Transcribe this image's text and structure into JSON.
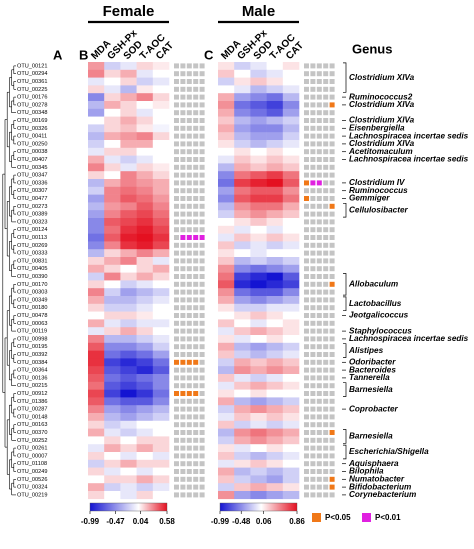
{
  "panel_letters": [
    "A",
    "B",
    "C"
  ],
  "genus_title": "Genus",
  "rows": [
    "OTU_00121",
    "OTU_00294",
    "OTU_00361",
    "OTU_00225",
    "OTU_00176",
    "OTU_00278",
    "OTU_00348",
    "OTU_00169",
    "OTU_00326",
    "OTU_00411",
    "OTU_00250",
    "OTU_00038",
    "OTU_00407",
    "OTU_00345",
    "OTU_00347",
    "OTU_00336",
    "OTU_00307",
    "OTU_00477",
    "OTU_00273",
    "OTU_00389",
    "OTU_00323",
    "OTU_00124",
    "OTU_00113",
    "OTU_00269",
    "OTU_00333",
    "OTU_00831",
    "OTU_00405",
    "OTU_00390",
    "OTU_00170",
    "OTU_00303",
    "OTU_00349",
    "OTU_00180",
    "OTU_00478",
    "OTU_00063",
    "OTU_00119",
    "OTU_00998",
    "OTU_00195",
    "OTU_00392",
    "OTU_00384",
    "OTU_00364",
    "OTU_00136",
    "OTU_00215",
    "OTU_00912",
    "OTU_01386",
    "OTU_00287",
    "OTU_00148",
    "OTU_00163",
    "OTU_00370",
    "OTU_00252",
    "OTU_00261",
    "OTU_00007",
    "OTU_01108",
    "OTU_00249",
    "OTU_00526",
    "OTU_00324",
    "OTU_00219"
  ],
  "row_colors": [
    "#d01010",
    "#d01010",
    "#1020c0",
    "#1020c0",
    "#d01010",
    "#1020c0",
    "#1020c0",
    "#1020c0",
    "#d01010",
    "#d01010",
    "#1020c0",
    "#1020c0",
    "#30a030",
    "#d01010",
    "#1020c0",
    "#1020c0",
    "#1020c0",
    "#1020c0",
    "#d01010",
    "#1020c0",
    "#1020c0",
    "#d01010",
    "#d01010",
    "#1020c0",
    "#1020c0",
    "#d01010",
    "#d01010",
    "#1020c0",
    "#1020c0",
    "#d01010",
    "#1020c0",
    "#1020c0",
    "#1020c0",
    "#1020c0",
    "#1020c0",
    "#d01010",
    "#1020c0",
    "#d01010",
    "#1020c0",
    "#1020c0",
    "#1020c0",
    "#d01010",
    "#d01010",
    "#30a030",
    "#d01010",
    "#d01010",
    "#d01010",
    "#d01010",
    "#d01010",
    "#1020c0",
    "#1020c0",
    "#1020c0",
    "#1020c0",
    "#d01010",
    "#d01010",
    "#1020c0"
  ],
  "genus_labels": [
    {
      "text": "Clostridium XIVa",
      "rows": [
        0,
        3
      ]
    },
    {
      "text": "Ruminococcus2",
      "rows": [
        4,
        4
      ]
    },
    {
      "text": "Clostridium XIVa",
      "rows": [
        5,
        5
      ]
    },
    {
      "text": "Clostridium XIVa",
      "rows": [
        7,
        7
      ]
    },
    {
      "text": "Eisenbergiella",
      "rows": [
        8,
        8
      ]
    },
    {
      "text": "Lachnospiracea incertae sedis",
      "rows": [
        9,
        9
      ]
    },
    {
      "text": "Clostridium XIVa",
      "rows": [
        10,
        10
      ]
    },
    {
      "text": "Acetitomaculum",
      "rows": [
        11,
        11
      ]
    },
    {
      "text": "Lachnospiracea incertae sedis",
      "rows": [
        12,
        12
      ]
    },
    {
      "text": "Clostridium IV",
      "rows": [
        15,
        15
      ]
    },
    {
      "text": "Ruminococcus",
      "rows": [
        16,
        16
      ]
    },
    {
      "text": "Gemmiger",
      "rows": [
        17,
        17
      ]
    },
    {
      "text": "Cellulosibacter",
      "rows": [
        18,
        19
      ]
    },
    {
      "text": "Allobaculum",
      "rows": [
        27,
        29
      ]
    },
    {
      "text": "Lactobacillus",
      "rows": [
        30,
        31
      ]
    },
    {
      "text": "Jeotgalicoccus",
      "rows": [
        32,
        32
      ]
    },
    {
      "text": "Staphylococcus",
      "rows": [
        34,
        34
      ]
    },
    {
      "text": "Lachnospiracea incertae sedis",
      "rows": [
        35,
        35
      ]
    },
    {
      "text": "Alistipes",
      "rows": [
        36,
        37
      ]
    },
    {
      "text": "Odoribacter",
      "rows": [
        38,
        38
      ]
    },
    {
      "text": "Bacteroides",
      "rows": [
        39,
        39
      ]
    },
    {
      "text": "Tannerella",
      "rows": [
        40,
        40
      ]
    },
    {
      "text": "Barnesiella",
      "rows": [
        41,
        42
      ]
    },
    {
      "text": "Coprobacter",
      "rows": [
        44,
        44
      ]
    },
    {
      "text": "Barnesiella",
      "rows": [
        47,
        48
      ]
    },
    {
      "text": "Escherichia/Shigella",
      "rows": [
        49,
        50
      ]
    },
    {
      "text": "Aquisphaera",
      "rows": [
        51,
        51
      ]
    },
    {
      "text": "Bilophila",
      "rows": [
        52,
        52
      ]
    },
    {
      "text": "Numatobacter",
      "rows": [
        53,
        53
      ]
    },
    {
      "text": "Bifidobacterium",
      "rows": [
        54,
        54
      ]
    },
    {
      "text": "Corynebacterium",
      "rows": [
        55,
        55
      ]
    }
  ],
  "legend": [
    {
      "label": "P<0.05",
      "color": "#f07818"
    },
    {
      "label": "P<0.01",
      "color": "#e020e0"
    }
  ],
  "chart_data": [
    {
      "type": "heatmap",
      "title": "Female",
      "columns": [
        "MDA",
        "GSH-Px",
        "SOD",
        "T-AOC",
        "CAT"
      ],
      "colors": [
        "#1414d2",
        "#ffffff",
        "#e41020"
      ],
      "clim": [
        -0.99,
        0.58
      ],
      "cticks": [
        -0.99,
        -0.47,
        0.04,
        0.58
      ],
      "values": [
        [
          0.25,
          -0.2,
          -0.1,
          0.1,
          0.05
        ],
        [
          0.3,
          0.1,
          0.2,
          -0.1,
          0.0
        ],
        [
          -0.1,
          0.0,
          0.1,
          -0.2,
          -0.1
        ],
        [
          0.1,
          -0.1,
          -0.3,
          0.05,
          0.0
        ],
        [
          -0.5,
          0.1,
          0.2,
          0.3,
          0.1
        ],
        [
          -0.3,
          0.2,
          0.1,
          0.0,
          0.05
        ],
        [
          -0.4,
          0.0,
          0.1,
          -0.1,
          0.0
        ],
        [
          0.0,
          0.1,
          0.2,
          0.1,
          0.0
        ],
        [
          -0.2,
          0.1,
          0.15,
          0.05,
          -0.05
        ],
        [
          -0.3,
          0.2,
          0.25,
          0.3,
          0.1
        ],
        [
          -0.2,
          0.0,
          0.2,
          0.2,
          0.0
        ],
        [
          -0.1,
          0.1,
          0.1,
          0.0,
          0.0
        ],
        [
          0.2,
          -0.1,
          -0.2,
          -0.1,
          0.0
        ],
        [
          0.3,
          0.1,
          -0.1,
          0.1,
          0.05
        ],
        [
          0.1,
          0.0,
          0.3,
          0.2,
          0.1
        ],
        [
          -0.3,
          0.2,
          0.3,
          0.25,
          0.2
        ],
        [
          -0.2,
          0.3,
          0.35,
          0.3,
          0.2
        ],
        [
          -0.4,
          0.3,
          0.4,
          0.35,
          0.25
        ],
        [
          -0.3,
          0.25,
          0.3,
          0.4,
          0.3
        ],
        [
          -0.4,
          0.3,
          0.4,
          0.45,
          0.35
        ],
        [
          -0.5,
          0.4,
          0.45,
          0.5,
          0.4
        ],
        [
          -0.5,
          0.35,
          0.5,
          0.55,
          0.45
        ],
        [
          -0.6,
          0.4,
          0.55,
          0.58,
          0.5
        ],
        [
          -0.5,
          0.3,
          0.5,
          0.55,
          0.45
        ],
        [
          -0.3,
          0.1,
          0.2,
          0.3,
          0.2
        ],
        [
          0.1,
          0.2,
          0.3,
          0.1,
          -0.1
        ],
        [
          0.2,
          0.1,
          0.0,
          0.1,
          0.2
        ],
        [
          -0.2,
          0.3,
          0.1,
          0.2,
          0.1
        ],
        [
          0.1,
          0.0,
          -0.2,
          -0.1,
          0.0
        ],
        [
          0.3,
          -0.2,
          -0.4,
          -0.3,
          -0.2
        ],
        [
          0.2,
          -0.3,
          -0.3,
          -0.2,
          -0.1
        ],
        [
          0.1,
          -0.2,
          -0.2,
          -0.1,
          0.0
        ],
        [
          0.0,
          0.1,
          0.1,
          0.05,
          0.0
        ],
        [
          0.2,
          -0.1,
          -0.2,
          -0.1,
          -0.1
        ],
        [
          -0.1,
          0.1,
          0.2,
          0.1,
          0.0
        ],
        [
          0.3,
          -0.3,
          -0.3,
          -0.2,
          -0.1
        ],
        [
          0.4,
          -0.5,
          -0.5,
          -0.4,
          -0.2
        ],
        [
          0.5,
          -0.6,
          -0.7,
          -0.6,
          -0.4
        ],
        [
          0.5,
          -0.8,
          -0.9,
          -0.8,
          -0.6
        ],
        [
          0.45,
          -0.7,
          -0.8,
          -0.9,
          -0.7
        ],
        [
          0.4,
          -0.6,
          -0.7,
          -0.6,
          -0.5
        ],
        [
          0.35,
          -0.7,
          -0.8,
          -0.7,
          -0.5
        ],
        [
          0.45,
          -0.8,
          -0.99,
          -0.85,
          -0.6
        ],
        [
          0.4,
          -0.6,
          -0.7,
          -0.7,
          -0.5
        ],
        [
          0.3,
          -0.4,
          -0.5,
          -0.4,
          -0.3
        ],
        [
          0.2,
          -0.3,
          -0.4,
          -0.3,
          -0.2
        ],
        [
          0.1,
          -0.2,
          -0.1,
          0.0,
          0.0
        ],
        [
          0.2,
          -0.1,
          -0.2,
          -0.1,
          0.0
        ],
        [
          0.0,
          0.1,
          0.0,
          0.1,
          0.1
        ],
        [
          -0.1,
          0.2,
          0.1,
          0.2,
          0.1
        ],
        [
          0.1,
          0.0,
          -0.1,
          0.0,
          -0.1
        ],
        [
          -0.2,
          0.1,
          0.2,
          0.1,
          0.1
        ],
        [
          0.1,
          -0.1,
          0.0,
          -0.1,
          0.0
        ],
        [
          0.0,
          0.1,
          0.1,
          0.2,
          0.1
        ],
        [
          0.2,
          -0.2,
          -0.1,
          -0.2,
          -0.1
        ],
        [
          0.1,
          0.0,
          -0.1,
          0.1,
          0.0
        ]
      ],
      "significant": [
        {
          "row": 22,
          "col": 1,
          "level": 1
        },
        {
          "row": 22,
          "col": 2,
          "level": 1
        },
        {
          "row": 22,
          "col": 3,
          "level": 1
        },
        {
          "row": 22,
          "col": 4,
          "level": 1
        },
        {
          "row": 38,
          "col": 0,
          "level": 0
        },
        {
          "row": 38,
          "col": 1,
          "level": 0
        },
        {
          "row": 38,
          "col": 2,
          "level": 0
        },
        {
          "row": 38,
          "col": 3,
          "level": 0
        },
        {
          "row": 42,
          "col": 0,
          "level": 0
        },
        {
          "row": 42,
          "col": 1,
          "level": 0
        },
        {
          "row": 42,
          "col": 2,
          "level": 0
        },
        {
          "row": 42,
          "col": 3,
          "level": 0
        }
      ]
    },
    {
      "type": "heatmap",
      "title": "Male",
      "columns": [
        "MDA",
        "GSH-Px",
        "SOD",
        "T-AOC",
        "CAT"
      ],
      "colors": [
        "#1414d2",
        "#ffffff",
        "#e41020"
      ],
      "clim": [
        -0.99,
        0.86
      ],
      "cticks": [
        -0.99,
        -0.48,
        0.06,
        0.86
      ],
      "values": [
        [
          0.1,
          -0.2,
          -0.1,
          0.0,
          0.1
        ],
        [
          0.2,
          0.0,
          -0.2,
          -0.1,
          0.0
        ],
        [
          -0.2,
          0.1,
          0.2,
          0.1,
          0.0
        ],
        [
          0.0,
          -0.1,
          -0.3,
          -0.2,
          -0.1
        ],
        [
          0.3,
          -0.4,
          -0.5,
          -0.6,
          -0.3
        ],
        [
          0.4,
          -0.6,
          -0.7,
          -0.8,
          -0.5
        ],
        [
          0.3,
          -0.5,
          -0.6,
          -0.7,
          -0.4
        ],
        [
          0.2,
          -0.3,
          -0.4,
          -0.3,
          -0.2
        ],
        [
          0.3,
          -0.4,
          -0.5,
          -0.5,
          -0.3
        ],
        [
          0.2,
          -0.3,
          -0.4,
          -0.4,
          -0.2
        ],
        [
          0.1,
          -0.2,
          -0.3,
          -0.2,
          -0.1
        ],
        [
          0.0,
          0.1,
          0.0,
          0.1,
          0.0
        ],
        [
          -0.1,
          0.2,
          0.1,
          0.2,
          0.1
        ],
        [
          -0.3,
          0.3,
          0.2,
          0.3,
          0.2
        ],
        [
          -0.5,
          0.5,
          0.6,
          0.7,
          0.5
        ],
        [
          -0.6,
          0.7,
          0.8,
          0.86,
          0.6
        ],
        [
          -0.4,
          0.5,
          0.6,
          0.6,
          0.4
        ],
        [
          -0.5,
          0.6,
          0.7,
          0.7,
          0.5
        ],
        [
          -0.3,
          0.4,
          0.5,
          0.5,
          0.3
        ],
        [
          -0.2,
          0.3,
          0.4,
          0.3,
          0.2
        ],
        [
          0.0,
          0.1,
          0.2,
          0.1,
          0.0
        ],
        [
          0.1,
          -0.1,
          0.0,
          -0.1,
          0.0
        ],
        [
          -0.1,
          0.2,
          0.1,
          0.2,
          0.1
        ],
        [
          0.2,
          -0.2,
          -0.1,
          -0.2,
          -0.1
        ],
        [
          0.1,
          0.0,
          -0.1,
          0.0,
          0.0
        ],
        [
          0.2,
          -0.3,
          -0.2,
          -0.3,
          -0.2
        ],
        [
          0.4,
          -0.5,
          -0.6,
          -0.5,
          -0.4
        ],
        [
          0.5,
          -0.8,
          -0.9,
          -0.99,
          -0.7
        ],
        [
          0.6,
          -0.9,
          -0.99,
          -0.9,
          -0.8
        ],
        [
          0.4,
          -0.6,
          -0.7,
          -0.7,
          -0.5
        ],
        [
          0.3,
          -0.4,
          -0.5,
          -0.4,
          -0.3
        ],
        [
          0.1,
          -0.2,
          -0.2,
          -0.1,
          -0.1
        ],
        [
          0.0,
          0.1,
          0.2,
          0.1,
          0.0
        ],
        [
          0.2,
          0.0,
          -0.1,
          0.0,
          0.1
        ],
        [
          -0.1,
          0.2,
          0.3,
          0.2,
          0.1
        ],
        [
          0.1,
          -0.1,
          0.0,
          0.1,
          0.0
        ],
        [
          0.3,
          -0.3,
          -0.4,
          -0.3,
          -0.2
        ],
        [
          0.2,
          -0.2,
          -0.3,
          -0.2,
          -0.1
        ],
        [
          -0.2,
          0.3,
          0.2,
          0.3,
          0.2
        ],
        [
          -0.3,
          0.4,
          0.3,
          0.4,
          0.3
        ],
        [
          0.2,
          -0.1,
          -0.2,
          -0.1,
          0.0
        ],
        [
          -0.1,
          0.2,
          0.3,
          0.2,
          0.1
        ],
        [
          0.1,
          0.0,
          0.1,
          0.0,
          0.0
        ],
        [
          0.3,
          -0.3,
          -0.4,
          -0.3,
          -0.2
        ],
        [
          -0.2,
          0.3,
          0.4,
          0.3,
          0.2
        ],
        [
          -0.1,
          0.2,
          0.1,
          0.2,
          0.1
        ],
        [
          0.2,
          -0.2,
          -0.1,
          -0.2,
          -0.1
        ],
        [
          -0.3,
          0.4,
          0.5,
          0.4,
          0.3
        ],
        [
          -0.2,
          0.3,
          0.4,
          0.3,
          0.2
        ],
        [
          0.1,
          -0.1,
          0.0,
          0.1,
          0.0
        ],
        [
          0.2,
          -0.2,
          -0.3,
          -0.2,
          -0.1
        ],
        [
          -0.1,
          0.1,
          0.2,
          0.1,
          0.0
        ],
        [
          0.3,
          -0.3,
          -0.2,
          -0.3,
          -0.2
        ],
        [
          0.2,
          -0.2,
          -0.3,
          -0.4,
          -0.2
        ],
        [
          -0.2,
          0.2,
          0.3,
          0.2,
          0.1
        ],
        [
          0.4,
          -0.4,
          -0.5,
          -0.4,
          -0.3
        ]
      ],
      "significant": [
        {
          "row": 5,
          "col": 4,
          "level": 0
        },
        {
          "row": 15,
          "col": 0,
          "level": 0
        },
        {
          "row": 15,
          "col": 1,
          "level": 1
        },
        {
          "row": 15,
          "col": 2,
          "level": 1
        },
        {
          "row": 17,
          "col": 0,
          "level": 0
        },
        {
          "row": 18,
          "col": 4,
          "level": 0
        },
        {
          "row": 28,
          "col": 4,
          "level": 0
        },
        {
          "row": 47,
          "col": 4,
          "level": 0
        },
        {
          "row": 53,
          "col": 4,
          "level": 0
        },
        {
          "row": 54,
          "col": 4,
          "level": 0
        }
      ]
    }
  ]
}
